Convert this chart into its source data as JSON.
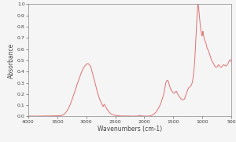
{
  "title": "",
  "xlabel": "Wavenumbers (cm-1)",
  "ylabel": "Absorbance",
  "xlim": [
    4000,
    500
  ],
  "ylim": [
    0.0,
    1.0
  ],
  "xticks": [
    4000,
    3500,
    3000,
    2500,
    2000,
    1500,
    1000,
    500
  ],
  "yticks": [
    0.0,
    0.1,
    0.2,
    0.3,
    0.4,
    0.5,
    0.6,
    0.7,
    0.8,
    0.9,
    1.0
  ],
  "line_color": "#e07070",
  "background_color": "#f5f5f5",
  "keypoints": [
    [
      4000,
      0.003
    ],
    [
      3900,
      0.003
    ],
    [
      3800,
      0.003
    ],
    [
      3700,
      0.004
    ],
    [
      3600,
      0.005
    ],
    [
      3500,
      0.006
    ],
    [
      3400,
      0.015
    ],
    [
      3300,
      0.08
    ],
    [
      3200,
      0.22
    ],
    [
      3100,
      0.37
    ],
    [
      3050,
      0.43
    ],
    [
      2980,
      0.47
    ],
    [
      2960,
      0.468
    ],
    [
      2940,
      0.455
    ],
    [
      2920,
      0.44
    ],
    [
      2900,
      0.4
    ],
    [
      2880,
      0.36
    ],
    [
      2850,
      0.3
    ],
    [
      2820,
      0.24
    ],
    [
      2800,
      0.2
    ],
    [
      2780,
      0.17
    ],
    [
      2750,
      0.13
    ],
    [
      2730,
      0.11
    ],
    [
      2710,
      0.09
    ],
    [
      2700,
      0.1
    ],
    [
      2690,
      0.108
    ],
    [
      2680,
      0.1
    ],
    [
      2670,
      0.09
    ],
    [
      2660,
      0.08
    ],
    [
      2650,
      0.07
    ],
    [
      2620,
      0.05
    ],
    [
      2600,
      0.035
    ],
    [
      2550,
      0.018
    ],
    [
      2500,
      0.01
    ],
    [
      2450,
      0.006
    ],
    [
      2400,
      0.004
    ],
    [
      2350,
      0.004
    ],
    [
      2300,
      0.004
    ],
    [
      2250,
      0.003
    ],
    [
      2200,
      0.003
    ],
    [
      2150,
      0.003
    ],
    [
      2120,
      0.004
    ],
    [
      2100,
      0.005
    ],
    [
      2090,
      0.008
    ],
    [
      2080,
      0.01
    ],
    [
      2070,
      0.008
    ],
    [
      2060,
      0.006
    ],
    [
      2050,
      0.005
    ],
    [
      2030,
      0.004
    ],
    [
      2000,
      0.003
    ],
    [
      1950,
      0.003
    ],
    [
      1920,
      0.004
    ],
    [
      1900,
      0.005
    ],
    [
      1880,
      0.008
    ],
    [
      1860,
      0.012
    ],
    [
      1840,
      0.02
    ],
    [
      1820,
      0.028
    ],
    [
      1800,
      0.038
    ],
    [
      1780,
      0.052
    ],
    [
      1760,
      0.07
    ],
    [
      1740,
      0.09
    ],
    [
      1720,
      0.11
    ],
    [
      1700,
      0.14
    ],
    [
      1680,
      0.175
    ],
    [
      1660,
      0.21
    ],
    [
      1650,
      0.24
    ],
    [
      1640,
      0.27
    ],
    [
      1630,
      0.295
    ],
    [
      1620,
      0.31
    ],
    [
      1610,
      0.32
    ],
    [
      1600,
      0.322
    ],
    [
      1590,
      0.318
    ],
    [
      1580,
      0.305
    ],
    [
      1570,
      0.285
    ],
    [
      1560,
      0.265
    ],
    [
      1550,
      0.248
    ],
    [
      1540,
      0.238
    ],
    [
      1530,
      0.23
    ],
    [
      1520,
      0.225
    ],
    [
      1510,
      0.218
    ],
    [
      1500,
      0.21
    ],
    [
      1490,
      0.208
    ],
    [
      1480,
      0.208
    ],
    [
      1470,
      0.212
    ],
    [
      1460,
      0.22
    ],
    [
      1450,
      0.225
    ],
    [
      1440,
      0.218
    ],
    [
      1430,
      0.205
    ],
    [
      1420,
      0.195
    ],
    [
      1410,
      0.188
    ],
    [
      1400,
      0.18
    ],
    [
      1390,
      0.172
    ],
    [
      1380,
      0.165
    ],
    [
      1370,
      0.16
    ],
    [
      1360,
      0.155
    ],
    [
      1350,
      0.15
    ],
    [
      1340,
      0.148
    ],
    [
      1330,
      0.148
    ],
    [
      1320,
      0.15
    ],
    [
      1310,
      0.155
    ],
    [
      1300,
      0.165
    ],
    [
      1290,
      0.18
    ],
    [
      1280,
      0.195
    ],
    [
      1270,
      0.21
    ],
    [
      1260,
      0.225
    ],
    [
      1250,
      0.238
    ],
    [
      1240,
      0.25
    ],
    [
      1230,
      0.258
    ],
    [
      1220,
      0.262
    ],
    [
      1210,
      0.265
    ],
    [
      1200,
      0.27
    ],
    [
      1190,
      0.278
    ],
    [
      1180,
      0.29
    ],
    [
      1170,
      0.31
    ],
    [
      1160,
      0.34
    ],
    [
      1150,
      0.38
    ],
    [
      1140,
      0.43
    ],
    [
      1130,
      0.5
    ],
    [
      1120,
      0.59
    ],
    [
      1110,
      0.69
    ],
    [
      1100,
      0.8
    ],
    [
      1090,
      0.9
    ],
    [
      1080,
      0.975
    ],
    [
      1075,
      1.0
    ],
    [
      1070,
      0.995
    ],
    [
      1060,
      0.96
    ],
    [
      1050,
      0.9
    ],
    [
      1040,
      0.84
    ],
    [
      1030,
      0.79
    ],
    [
      1020,
      0.755
    ],
    [
      1010,
      0.73
    ],
    [
      1000,
      0.72
    ],
    [
      995,
      0.74
    ],
    [
      990,
      0.76
    ],
    [
      985,
      0.75
    ],
    [
      980,
      0.735
    ],
    [
      975,
      0.715
    ],
    [
      970,
      0.7
    ],
    [
      965,
      0.69
    ],
    [
      960,
      0.682
    ],
    [
      955,
      0.675
    ],
    [
      950,
      0.668
    ],
    [
      945,
      0.66
    ],
    [
      940,
      0.655
    ],
    [
      935,
      0.65
    ],
    [
      930,
      0.64
    ],
    [
      925,
      0.628
    ],
    [
      920,
      0.615
    ],
    [
      915,
      0.605
    ],
    [
      910,
      0.6
    ],
    [
      905,
      0.598
    ],
    [
      900,
      0.595
    ],
    [
      895,
      0.59
    ],
    [
      890,
      0.582
    ],
    [
      880,
      0.565
    ],
    [
      870,
      0.548
    ],
    [
      860,
      0.53
    ],
    [
      850,
      0.515
    ],
    [
      840,
      0.5
    ],
    [
      830,
      0.49
    ],
    [
      820,
      0.482
    ],
    [
      810,
      0.475
    ],
    [
      800,
      0.465
    ],
    [
      790,
      0.455
    ],
    [
      780,
      0.445
    ],
    [
      770,
      0.44
    ],
    [
      760,
      0.438
    ],
    [
      750,
      0.44
    ],
    [
      740,
      0.445
    ],
    [
      730,
      0.455
    ],
    [
      720,
      0.46
    ],
    [
      710,
      0.458
    ],
    [
      700,
      0.45
    ],
    [
      690,
      0.442
    ],
    [
      680,
      0.438
    ],
    [
      670,
      0.44
    ],
    [
      660,
      0.445
    ],
    [
      650,
      0.452
    ],
    [
      640,
      0.458
    ],
    [
      630,
      0.46
    ],
    [
      620,
      0.458
    ],
    [
      610,
      0.455
    ],
    [
      600,
      0.452
    ],
    [
      590,
      0.45
    ],
    [
      580,
      0.455
    ],
    [
      570,
      0.46
    ],
    [
      560,
      0.468
    ],
    [
      550,
      0.478
    ],
    [
      540,
      0.49
    ],
    [
      530,
      0.5
    ],
    [
      520,
      0.505
    ],
    [
      510,
      0.5
    ],
    [
      500,
      0.488
    ]
  ]
}
